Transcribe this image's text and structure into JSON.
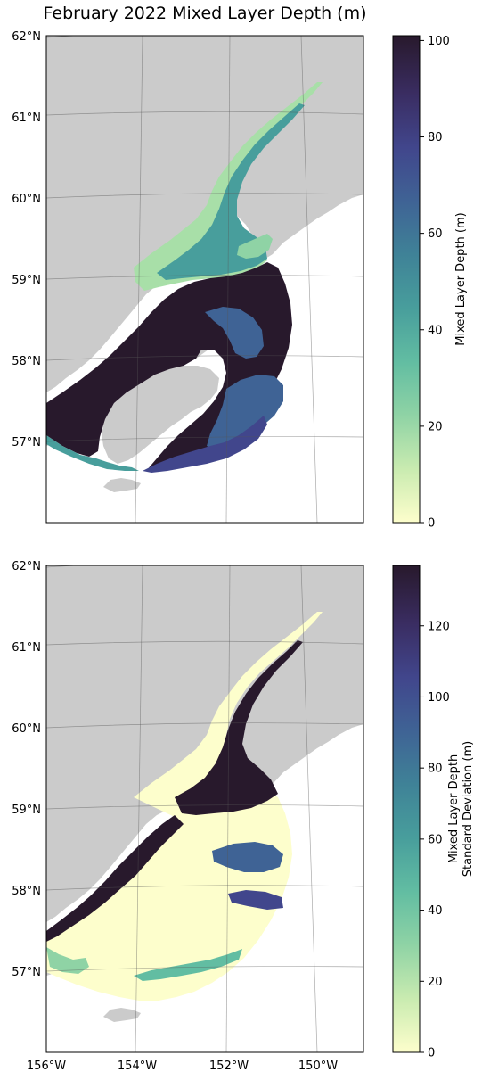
{
  "title": "February 2022 Mixed Layer Depth (m)",
  "lat_labels": [
    "62°N",
    "61°N",
    "60°N",
    "59°N",
    "58°N",
    "57°N"
  ],
  "lon_labels": [
    "156°W",
    "154°W",
    "152°W",
    "150°W"
  ],
  "panels": [
    {
      "colorbar": {
        "label_lines": [
          "Mixed Layer Depth (m)"
        ],
        "ticks": [
          "0",
          "20",
          "40",
          "60",
          "80",
          "100"
        ],
        "min": 0,
        "max": 101
      }
    },
    {
      "colorbar": {
        "label_lines": [
          "Mixed Layer Depth",
          "Standard Deviation (m)"
        ],
        "ticks": [
          "0",
          "20",
          "40",
          "60",
          "80",
          "100",
          "120"
        ],
        "min": 0,
        "max": 137
      }
    }
  ],
  "colors": {
    "land": "#cbcbcb",
    "cmap": [
      "#fdfecc",
      "#c9ebb0",
      "#8fd3a5",
      "#62bda2",
      "#489e9c",
      "#3f8297",
      "#3f6395",
      "#41468c",
      "#3a2d62",
      "#28192c"
    ]
  }
}
